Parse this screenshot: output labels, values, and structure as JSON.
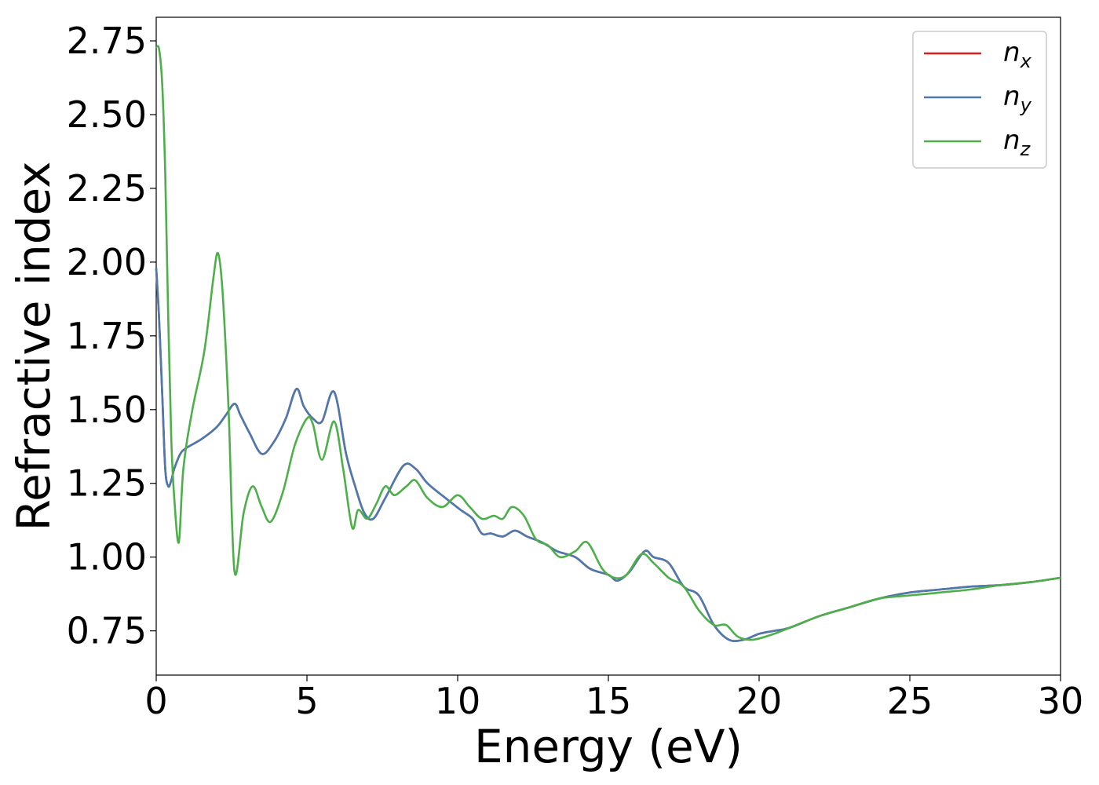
{
  "chart_data": {
    "type": "line",
    "title": "",
    "xlabel": "Energy (eV)",
    "ylabel": "Refractive index",
    "xlim": [
      0,
      30
    ],
    "ylim": [
      0.6,
      2.83
    ],
    "xticks": [
      0,
      5,
      10,
      15,
      20,
      25,
      30
    ],
    "yticks": [
      0.75,
      1.0,
      1.25,
      1.5,
      1.75,
      2.0,
      2.25,
      2.5,
      2.75
    ],
    "ytick_labels": [
      "0.75",
      "1.00",
      "1.25",
      "1.50",
      "1.75",
      "2.00",
      "2.25",
      "2.50",
      "2.75"
    ],
    "grid": false,
    "legend_position": "top-right",
    "series": [
      {
        "name": "n",
        "subscript": "x",
        "color": "#e41a1c",
        "x": [
          0,
          0.1,
          0.2,
          0.3,
          0.4,
          0.5,
          0.6,
          0.8,
          1.0,
          1.5,
          2.0,
          2.3,
          2.6,
          2.8,
          3.1,
          3.5,
          3.9,
          4.3,
          4.65,
          4.9,
          5.2,
          5.5,
          5.9,
          6.3,
          6.6,
          6.9,
          7.2,
          7.6,
          8.2,
          8.6,
          9.0,
          9.6,
          10.1,
          10.5,
          10.8,
          11.1,
          11.5,
          11.9,
          12.3,
          12.8,
          13.3,
          13.9,
          14.4,
          15.0,
          15.3,
          15.7,
          16.2,
          16.5,
          17.0,
          17.5,
          18.0,
          18.5,
          19.0,
          19.5,
          20.0,
          20.5,
          21.0,
          22.0,
          23.0,
          24.0,
          25.0,
          26.0,
          27.0,
          28.0,
          29.0,
          30.0
        ],
        "y": [
          1.98,
          1.8,
          1.55,
          1.3,
          1.24,
          1.26,
          1.3,
          1.35,
          1.37,
          1.4,
          1.44,
          1.48,
          1.52,
          1.48,
          1.42,
          1.35,
          1.39,
          1.47,
          1.57,
          1.51,
          1.47,
          1.46,
          1.56,
          1.35,
          1.24,
          1.15,
          1.13,
          1.2,
          1.31,
          1.3,
          1.25,
          1.2,
          1.16,
          1.13,
          1.08,
          1.08,
          1.07,
          1.09,
          1.07,
          1.05,
          1.02,
          1.0,
          0.96,
          0.94,
          0.92,
          0.95,
          1.02,
          1.0,
          0.98,
          0.9,
          0.87,
          0.77,
          0.72,
          0.72,
          0.74,
          0.75,
          0.76,
          0.8,
          0.83,
          0.86,
          0.88,
          0.89,
          0.9,
          0.905,
          0.915,
          0.93
        ]
      },
      {
        "name": "n",
        "subscript": "y",
        "color": "#4a7ab0",
        "x": [
          0,
          0.1,
          0.2,
          0.3,
          0.4,
          0.5,
          0.6,
          0.8,
          1.0,
          1.5,
          2.0,
          2.3,
          2.6,
          2.8,
          3.1,
          3.5,
          3.9,
          4.3,
          4.65,
          4.9,
          5.2,
          5.5,
          5.9,
          6.3,
          6.6,
          6.9,
          7.2,
          7.6,
          8.2,
          8.6,
          9.0,
          9.6,
          10.1,
          10.5,
          10.8,
          11.1,
          11.5,
          11.9,
          12.3,
          12.8,
          13.3,
          13.9,
          14.4,
          15.0,
          15.3,
          15.7,
          16.2,
          16.5,
          17.0,
          17.5,
          18.0,
          18.5,
          19.0,
          19.5,
          20.0,
          20.5,
          21.0,
          22.0,
          23.0,
          24.0,
          25.0,
          26.0,
          27.0,
          28.0,
          29.0,
          30.0
        ],
        "y": [
          1.98,
          1.8,
          1.55,
          1.3,
          1.24,
          1.26,
          1.3,
          1.35,
          1.37,
          1.4,
          1.44,
          1.48,
          1.52,
          1.48,
          1.42,
          1.35,
          1.39,
          1.47,
          1.57,
          1.51,
          1.47,
          1.46,
          1.56,
          1.35,
          1.24,
          1.15,
          1.13,
          1.2,
          1.31,
          1.3,
          1.25,
          1.2,
          1.16,
          1.13,
          1.08,
          1.08,
          1.07,
          1.09,
          1.07,
          1.05,
          1.02,
          1.0,
          0.96,
          0.94,
          0.92,
          0.95,
          1.02,
          1.0,
          0.98,
          0.9,
          0.87,
          0.77,
          0.72,
          0.72,
          0.74,
          0.75,
          0.76,
          0.8,
          0.83,
          0.86,
          0.88,
          0.89,
          0.9,
          0.905,
          0.915,
          0.93
        ]
      },
      {
        "name": "n",
        "subscript": "z",
        "color": "#4daf4a",
        "x": [
          0,
          0.1,
          0.2,
          0.3,
          0.4,
          0.5,
          0.6,
          0.75,
          0.9,
          1.2,
          1.6,
          1.9,
          2.05,
          2.2,
          2.4,
          2.6,
          2.9,
          3.2,
          3.5,
          3.8,
          4.2,
          4.6,
          5.0,
          5.2,
          5.5,
          5.9,
          6.2,
          6.5,
          6.7,
          7.0,
          7.3,
          7.6,
          7.9,
          8.3,
          8.6,
          9.0,
          9.5,
          10.0,
          10.4,
          10.8,
          11.2,
          11.5,
          11.8,
          12.2,
          12.6,
          13.0,
          13.4,
          13.9,
          14.3,
          14.8,
          15.2,
          15.6,
          16.1,
          16.5,
          17.0,
          17.5,
          18.0,
          18.5,
          18.9,
          19.3,
          19.8,
          20.5,
          21.0,
          22.0,
          23.0,
          24.0,
          25.0,
          26.0,
          27.0,
          28.0,
          29.0,
          30.0
        ],
        "y": [
          2.73,
          2.72,
          2.6,
          2.3,
          1.8,
          1.4,
          1.2,
          1.05,
          1.3,
          1.5,
          1.7,
          1.95,
          2.03,
          1.9,
          1.5,
          0.95,
          1.15,
          1.24,
          1.17,
          1.12,
          1.22,
          1.38,
          1.47,
          1.45,
          1.33,
          1.46,
          1.3,
          1.1,
          1.16,
          1.13,
          1.18,
          1.24,
          1.21,
          1.24,
          1.26,
          1.2,
          1.17,
          1.21,
          1.17,
          1.13,
          1.14,
          1.13,
          1.17,
          1.14,
          1.06,
          1.04,
          1.0,
          1.02,
          1.05,
          0.96,
          0.93,
          0.94,
          1.01,
          0.98,
          0.93,
          0.9,
          0.82,
          0.77,
          0.77,
          0.73,
          0.72,
          0.74,
          0.76,
          0.8,
          0.83,
          0.86,
          0.87,
          0.88,
          0.89,
          0.905,
          0.915,
          0.93
        ]
      }
    ]
  }
}
